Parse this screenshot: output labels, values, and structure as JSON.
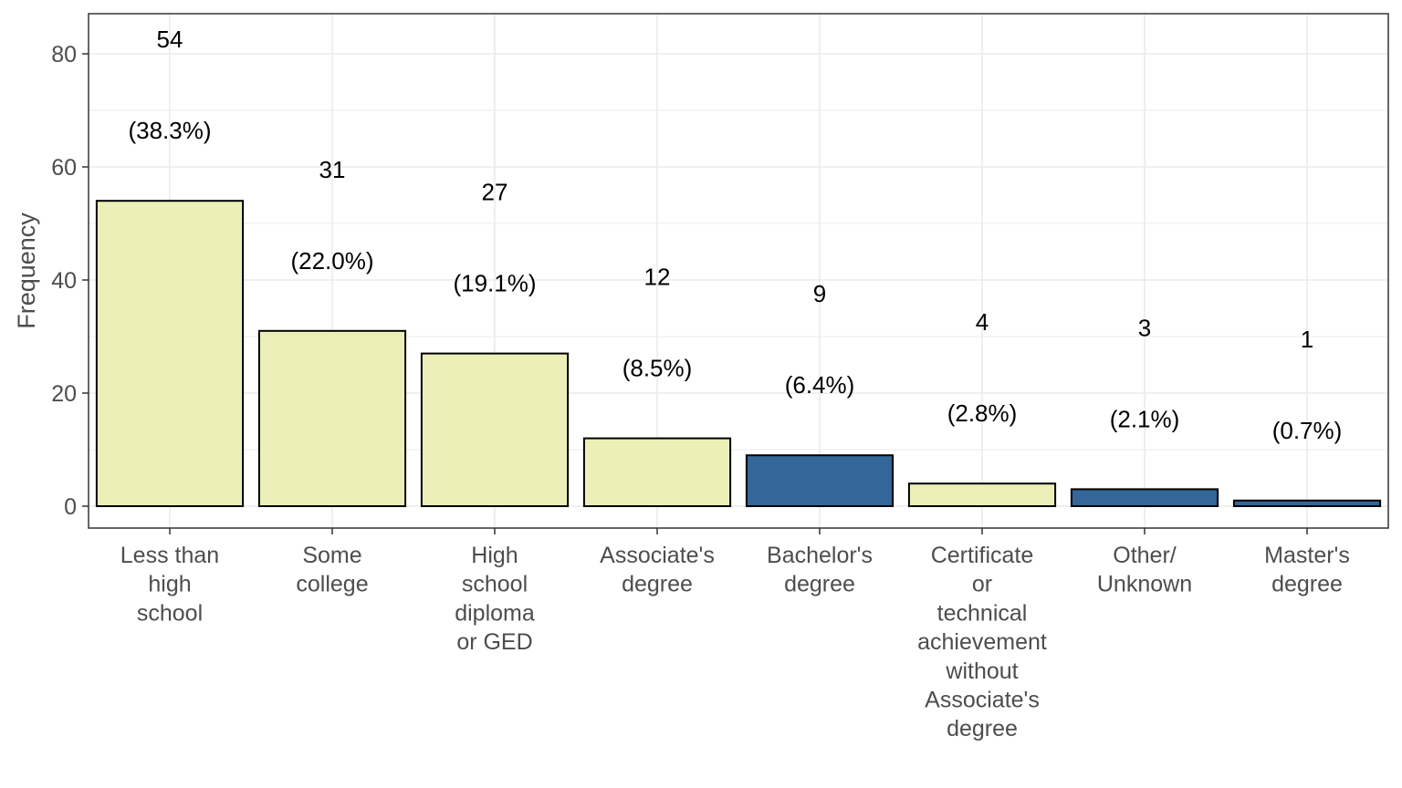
{
  "chart_data": {
    "type": "bar",
    "title": "",
    "xlabel": "",
    "ylabel": "Frequency",
    "ylim": [
      0,
      86
    ],
    "yticks": [
      0,
      20,
      40,
      60,
      80
    ],
    "grid": true,
    "legend": "none",
    "categories": [
      "Less than high school",
      "Some college",
      "High school diploma or GED",
      "Associate's degree",
      "Bachelor's degree",
      "Certificate or technical achievement without Associate's degree",
      "Other/ Unknown",
      "Master's degree"
    ],
    "category_lines": [
      [
        "Less than",
        "high",
        "school"
      ],
      [
        "Some",
        "college"
      ],
      [
        "High",
        "school",
        "diploma",
        "or GED"
      ],
      [
        "Associate's",
        "degree"
      ],
      [
        "Bachelor's",
        "degree"
      ],
      [
        "Certificate",
        "or",
        "technical",
        "achievement",
        "without",
        "Associate's",
        "degree"
      ],
      [
        "Other/",
        "Unknown"
      ],
      [
        "Master's",
        "degree"
      ]
    ],
    "values": [
      54,
      31,
      27,
      12,
      9,
      4,
      3,
      1
    ],
    "count_labels": [
      "54",
      "31",
      "27",
      "12",
      "9",
      "4",
      "3",
      "1"
    ],
    "percent_labels": [
      "(38.3%)",
      "(22.0%)",
      "(19.1%)",
      "(8.5%)",
      "(6.4%)",
      "(2.8%)",
      "(2.1%)",
      "(0.7%)"
    ],
    "bar_colors": [
      "#ecefb7",
      "#ecefb7",
      "#ecefb7",
      "#ecefb7",
      "#336699",
      "#ecefb7",
      "#336699",
      "#336699"
    ],
    "colors": {
      "light_bar": "#ecefb7",
      "dark_bar": "#336699",
      "bar_outline": "#000000",
      "grid": "#ebebeb",
      "panel_border": "#333333",
      "text": "#4d4d4d"
    }
  }
}
